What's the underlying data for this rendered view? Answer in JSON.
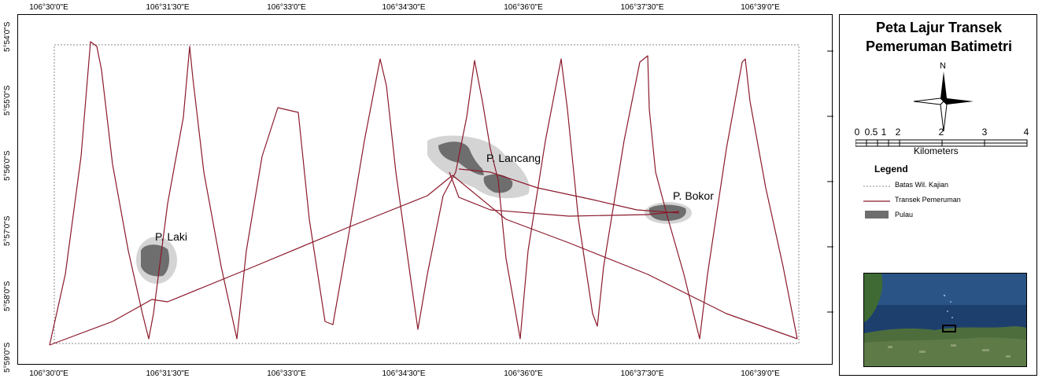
{
  "legend_panel": {
    "title_line1": "Peta Lajur Transek",
    "title_line2": "Pemeruman Batimetri",
    "north_label": "N",
    "scale_ticks": [
      "0",
      "0.5",
      "1",
      "2",
      "3",
      "4"
    ],
    "scale_unit": "Kilometers",
    "legend_title": "Legend",
    "legend_items": {
      "boundary": "Batas Wil. Kajian",
      "transect": "Transek Pemeruman",
      "island": "Pulau"
    }
  },
  "map": {
    "top_ticks": [
      "106°30'0\"E",
      "106°31'30\"E",
      "106°33'0\"E",
      "106°34'30\"E",
      "106°36'0\"E",
      "106°37'30\"E",
      "106°39'0\"E"
    ],
    "bottom_ticks": [
      "106°30'0\"E",
      "106°31'30\"E",
      "106°33'0\"E",
      "106°34'30\"E",
      "106°36'0\"E",
      "106°37'30\"E",
      "106°39'0\"E"
    ],
    "left_ticks": [
      "5°54'0\"S",
      "5°55'0\"S",
      "5°56'0\"S",
      "5°57'0\"S",
      "5°58'0\"S",
      "5°59'0\"S"
    ],
    "island_labels": {
      "laki": "P. Laki",
      "lancang": "P. Lancang",
      "bokor": "P. Bokor"
    }
  },
  "colors": {
    "transect": "#8b1a2b",
    "island": "#6e6e6e",
    "island_halo": "#d4d4d4",
    "boundary": "#888888"
  }
}
